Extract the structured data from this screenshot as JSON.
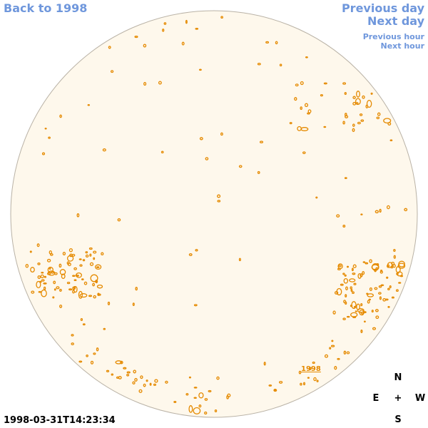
{
  "navigation": {
    "back": "Back to 1998",
    "previous_day": "Previous day",
    "next_day": "Next day",
    "previous_hour": "Previous hour",
    "next_hour": "Next hour"
  },
  "image": {
    "year_label": "1998",
    "timestamp": "1998-03-31T14:23:34",
    "disk_color": "#fef8ec",
    "contour_color": "#e58a00"
  },
  "compass": {
    "north": "N",
    "east": "E",
    "center": "+",
    "west": "W",
    "south": "S"
  }
}
